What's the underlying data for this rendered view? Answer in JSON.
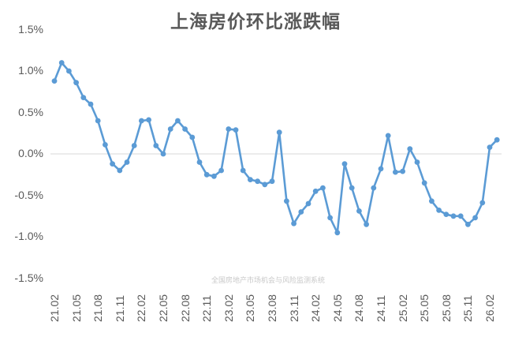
{
  "chart_data": {
    "type": "line",
    "title": "上海房价环比涨跌幅",
    "xlabel": "",
    "ylabel": "",
    "ylim": [
      -1.5,
      1.5
    ],
    "y_ticks": [
      "1.5%",
      "1.0%",
      "0.5%",
      "0.0%",
      "-0.5%",
      "-1.0%",
      "-1.5%"
    ],
    "x_tick_labels": [
      "21.02",
      "21.05",
      "21.08",
      "21.11",
      "22.02",
      "22.05",
      "22.08",
      "22.11",
      "23.02",
      "23.05",
      "23.08",
      "23.11",
      "24.02",
      "24.05",
      "24.08",
      "24.11",
      "25.02",
      "25.05",
      "25.08",
      "25.11",
      "26.02"
    ],
    "grid": "zero-line only",
    "legend": "none",
    "annotation": "全国房地产市场机会与风险监测系统",
    "series": [
      {
        "name": "上海房价环比涨跌幅",
        "color": "#5B9BD5",
        "x": [
          "21.02",
          "21.03",
          "21.04",
          "21.05",
          "21.06",
          "21.07",
          "21.08",
          "21.09",
          "21.10",
          "21.11",
          "21.12",
          "22.01",
          "22.02",
          "22.03",
          "22.04",
          "22.05",
          "22.06",
          "22.07",
          "22.08",
          "22.09",
          "22.10",
          "22.11",
          "22.12",
          "23.01",
          "23.02",
          "23.03",
          "23.04",
          "23.05",
          "23.06",
          "23.07",
          "23.08",
          "23.09",
          "23.10",
          "23.11",
          "23.12",
          "24.01",
          "24.02",
          "24.03",
          "24.04",
          "24.05",
          "24.06",
          "24.07",
          "24.08",
          "24.09",
          "24.10",
          "24.11",
          "24.12",
          "25.01",
          "25.02",
          "25.03",
          "25.04",
          "25.05",
          "25.06",
          "25.07",
          "25.08",
          "25.09",
          "25.10",
          "25.11",
          "25.12",
          "26.01",
          "26.02",
          "26.03"
        ],
        "values": [
          0.88,
          1.1,
          1.0,
          0.86,
          0.68,
          0.6,
          0.4,
          0.11,
          -0.12,
          -0.2,
          -0.1,
          0.1,
          0.4,
          0.41,
          0.1,
          0.0,
          0.3,
          0.4,
          0.3,
          0.2,
          -0.1,
          -0.25,
          -0.27,
          -0.2,
          0.3,
          0.29,
          -0.2,
          -0.31,
          -0.33,
          -0.37,
          -0.33,
          0.26,
          -0.57,
          -0.84,
          -0.7,
          -0.6,
          -0.45,
          -0.41,
          -0.77,
          -0.95,
          -0.12,
          -0.41,
          -0.69,
          -0.85,
          -0.41,
          -0.18,
          0.22,
          -0.22,
          -0.21,
          0.06,
          -0.1,
          -0.35,
          -0.57,
          -0.68,
          -0.73,
          -0.75,
          -0.75,
          -0.85,
          -0.77,
          -0.59,
          0.08,
          0.17
        ]
      }
    ]
  }
}
